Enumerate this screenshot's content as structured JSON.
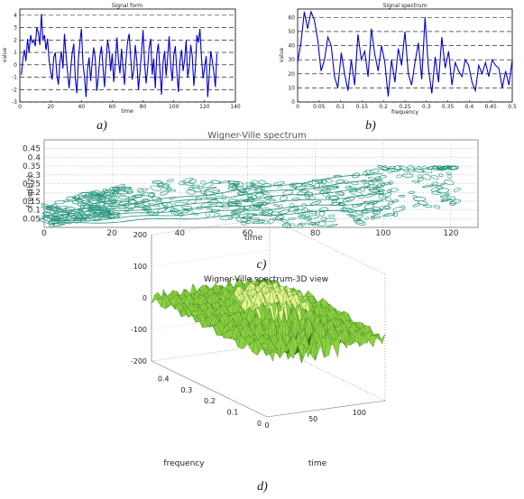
{
  "captions": {
    "a": "a)",
    "b": "b)",
    "c": "c)",
    "d": "d)"
  },
  "chart_data": [
    {
      "id": "a",
      "type": "line",
      "title": "Signal form",
      "xlabel": "time",
      "ylabel": "value",
      "xlim": [
        0,
        140
      ],
      "ylim": [
        -3,
        4.5
      ],
      "grid": "horizontal",
      "x_ticks": [
        0,
        20,
        40,
        60,
        80,
        100,
        120,
        140
      ],
      "y_ticks": [
        -3,
        -2,
        -1,
        0,
        1,
        2,
        3,
        4
      ],
      "series_color": "#0000cc",
      "x": [
        1,
        2,
        3,
        4,
        5,
        6,
        7,
        8,
        9,
        10,
        11,
        12,
        13,
        14,
        15,
        16,
        17,
        18,
        19,
        20,
        21,
        22,
        23,
        24,
        25,
        26,
        27,
        28,
        29,
        30,
        31,
        32,
        33,
        34,
        35,
        36,
        37,
        38,
        39,
        40,
        41,
        42,
        43,
        44,
        45,
        46,
        47,
        48,
        49,
        50,
        51,
        52,
        53,
        54,
        55,
        56,
        57,
        58,
        59,
        60,
        61,
        62,
        63,
        64,
        65,
        66,
        67,
        68,
        69,
        70,
        71,
        72,
        73,
        74,
        75,
        76,
        77,
        78,
        79,
        80,
        81,
        82,
        83,
        84,
        85,
        86,
        87,
        88,
        89,
        90,
        91,
        92,
        93,
        94,
        95,
        96,
        97,
        98,
        99,
        100,
        101,
        102,
        103,
        104,
        105,
        106,
        107,
        108,
        109,
        110,
        111,
        112,
        113,
        114,
        115,
        116,
        117,
        118,
        119,
        120,
        121,
        122,
        123,
        124,
        125,
        126,
        127,
        128
      ],
      "y": [
        -0.8,
        0.5,
        1.2,
        0.3,
        2.1,
        1.0,
        2.4,
        1.8,
        2.0,
        1.5,
        3.0,
        2.6,
        1.6,
        4.1,
        2.0,
        2.4,
        1.2,
        2.1,
        0.4,
        -0.5,
        -1.2,
        0.6,
        1.0,
        -0.8,
        -1.6,
        0.2,
        1.1,
        -0.3,
        2.5,
        0.8,
        -0.6,
        -1.9,
        -0.4,
        0.9,
        1.7,
        -1.1,
        -2.3,
        0.4,
        1.8,
        2.9,
        0.1,
        -1.0,
        -2.6,
        -0.3,
        0.6,
        -1.3,
        0.2,
        1.4,
        0.5,
        -2.1,
        -0.9,
        0.7,
        1.5,
        -0.2,
        -1.8,
        0.3,
        2.0,
        1.2,
        -0.5,
        0.9,
        -1.4,
        0.1,
        2.2,
        0.4,
        -0.7,
        1.3,
        -0.2,
        -1.6,
        0.5,
        1.9,
        2.5,
        0.6,
        -1.2,
        -0.4,
        1.6,
        0.3,
        -2.0,
        -0.6,
        1.0,
        2.8,
        0.2,
        -1.5,
        -0.3,
        1.4,
        2.1,
        -0.8,
        0.5,
        -1.9,
        0.9,
        1.7,
        -0.4,
        -2.4,
        0.2,
        1.1,
        -0.9,
        0.6,
        2.3,
        -0.1,
        -1.3,
        0.8,
        1.5,
        -0.6,
        -2.2,
        0.3,
        1.2,
        -0.5,
        0.4,
        2.0,
        -1.0,
        -0.2,
        1.6,
        0.7,
        -1.7,
        -0.3,
        2.4,
        1.8,
        2.9,
        0.5,
        -1.1,
        -0.2,
        0.7,
        -2.6,
        -0.8,
        1.1,
        0.3,
        -0.6,
        -1.8,
        0.9
      ]
    },
    {
      "id": "b",
      "type": "line",
      "title": "Signal spectrum",
      "xlabel": "frequency",
      "ylabel": "value",
      "xlim": [
        0,
        0.5
      ],
      "ylim": [
        0,
        66
      ],
      "grid": "horizontal",
      "x_ticks": [
        0,
        0.05,
        0.1,
        0.15,
        0.2,
        0.25,
        0.3,
        0.35,
        0.4,
        0.45,
        0.5
      ],
      "x_tick_labels": [
        "0",
        "0.05",
        "0.1",
        "0.15",
        "0.2",
        "0.25",
        "0.3",
        "0.35",
        "0.4",
        "0.45",
        "0.5"
      ],
      "y_ticks": [
        0,
        10,
        20,
        30,
        40,
        50,
        60
      ],
      "series_color": "#0000cc",
      "x": [
        0,
        0.0078,
        0.0156,
        0.0234,
        0.0313,
        0.0391,
        0.0469,
        0.0547,
        0.0625,
        0.0703,
        0.0781,
        0.0859,
        0.0938,
        0.1016,
        0.1094,
        0.1172,
        0.125,
        0.1328,
        0.1406,
        0.1484,
        0.1563,
        0.1641,
        0.1719,
        0.1797,
        0.1875,
        0.1953,
        0.2031,
        0.2109,
        0.2188,
        0.2266,
        0.2344,
        0.2422,
        0.25,
        0.2578,
        0.2656,
        0.2734,
        0.2813,
        0.2891,
        0.2969,
        0.3047,
        0.3125,
        0.3203,
        0.3281,
        0.3359,
        0.3438,
        0.3516,
        0.3594,
        0.3672,
        0.375,
        0.3828,
        0.3906,
        0.3984,
        0.4063,
        0.4141,
        0.4219,
        0.4297,
        0.4375,
        0.4453,
        0.4531,
        0.4609,
        0.4688,
        0.4766,
        0.4844,
        0.4922,
        0.5
      ],
      "y": [
        28,
        42,
        64,
        52,
        64,
        58,
        44,
        22,
        30,
        46,
        40,
        18,
        10,
        35,
        20,
        8,
        30,
        12,
        48,
        30,
        36,
        18,
        52,
        34,
        22,
        40,
        28,
        4,
        30,
        14,
        38,
        26,
        50,
        20,
        12,
        28,
        42,
        16,
        60,
        24,
        6,
        32,
        14,
        46,
        24,
        36,
        12,
        28,
        22,
        18,
        30,
        26,
        14,
        8,
        26,
        20,
        28,
        18,
        30,
        26,
        24,
        10,
        22,
        12,
        30
      ]
    },
    {
      "id": "c",
      "type": "contour",
      "title": "Wigner-Ville spectrum",
      "xlabel": "time",
      "ylabel": "freq(Hz)",
      "xlim": [
        0,
        128
      ],
      "ylim": [
        0,
        0.5
      ],
      "grid": "dotted",
      "x_ticks": [
        0,
        20,
        40,
        60,
        80,
        100,
        120
      ],
      "y_ticks": [
        0.05,
        0.1,
        0.15,
        0.2,
        0.25,
        0.3,
        0.35,
        0.4,
        0.45
      ],
      "y_tick_labels": [
        "0.05",
        "0.1",
        "0.15",
        "0.2",
        "0.25",
        "0.3",
        "0.35",
        "0.4",
        "0.45"
      ],
      "contour_color": "#1f8f78"
    },
    {
      "id": "d",
      "type": "surface",
      "title": "Wigner-Ville spectrum-3D view",
      "xlabel": "frequency",
      "ylabel": "time",
      "z_ticks": [
        200,
        100,
        0,
        -100,
        -200
      ],
      "freq_ticks": [
        0.4,
        0.3,
        0.2,
        0.1,
        0
      ],
      "time_ticks": [
        0,
        50,
        100
      ],
      "zlim": [
        -200,
        200
      ],
      "surface_colors": [
        "#2a7a20",
        "#8fd040",
        "#e6f58a"
      ]
    }
  ]
}
